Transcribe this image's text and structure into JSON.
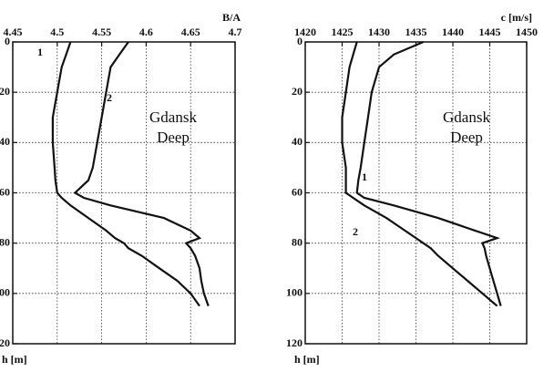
{
  "chart_data": [
    {
      "type": "line",
      "xlabel": "B/A",
      "ylabel": "h [m]",
      "annotations": [
        "Gdansk",
        "Deep"
      ],
      "xlim": [
        4.45,
        4.7
      ],
      "xticks": [
        4.45,
        4.5,
        4.55,
        4.6,
        4.65,
        4.7
      ],
      "ylim": [
        0,
        120
      ],
      "yticks": [
        0,
        20,
        40,
        60,
        80,
        100,
        120
      ],
      "grid": true,
      "y": [
        0,
        5,
        10,
        20,
        30,
        40,
        50,
        55,
        60,
        62,
        65,
        70,
        75,
        78,
        80,
        82,
        85,
        90,
        95,
        100,
        105
      ],
      "series": [
        {
          "name": "1",
          "color": "#111111",
          "values": [
            4.58,
            4.57,
            4.56,
            4.555,
            4.55,
            4.545,
            4.54,
            4.535,
            4.52,
            4.53,
            4.56,
            4.62,
            4.65,
            4.66,
            4.645,
            4.65,
            4.655,
            4.66,
            4.662,
            4.665,
            4.67
          ]
        },
        {
          "name": "2",
          "color": "#111111",
          "values": [
            4.515,
            4.51,
            4.505,
            4.5,
            4.495,
            4.495,
            4.497,
            4.498,
            4.5,
            4.505,
            4.515,
            4.535,
            4.555,
            4.565,
            4.575,
            4.58,
            4.595,
            4.615,
            4.635,
            4.65,
            4.66
          ]
        }
      ]
    },
    {
      "type": "line",
      "xlabel": "c [m/s]",
      "ylabel": "h [m]",
      "annotations": [
        "Gdansk",
        "Deep"
      ],
      "xlim": [
        1420,
        1450
      ],
      "xticks": [
        1420,
        1425,
        1430,
        1435,
        1440,
        1445,
        1450
      ],
      "ylim": [
        0,
        120
      ],
      "yticks": [
        0,
        20,
        40,
        60,
        80,
        100,
        120
      ],
      "grid": true,
      "y": [
        0,
        5,
        10,
        20,
        30,
        40,
        50,
        55,
        60,
        62,
        65,
        70,
        75,
        78,
        80,
        82,
        85,
        90,
        95,
        100,
        105
      ],
      "series": [
        {
          "name": "1",
          "color": "#111111",
          "values": [
            1436,
            1432,
            1430,
            1429,
            1428.5,
            1428,
            1427.5,
            1427.2,
            1427,
            1428,
            1432,
            1438,
            1443,
            1446,
            1444,
            1444.3,
            1444.5,
            1445,
            1445.5,
            1446,
            1446.5
          ]
        },
        {
          "name": "2",
          "color": "#111111",
          "values": [
            1427,
            1426.5,
            1426,
            1425.5,
            1425,
            1425,
            1425.5,
            1425.5,
            1425.5,
            1426.5,
            1428,
            1431,
            1433.5,
            1435,
            1436,
            1437,
            1438,
            1440,
            1442,
            1444,
            1446
          ]
        }
      ]
    }
  ]
}
